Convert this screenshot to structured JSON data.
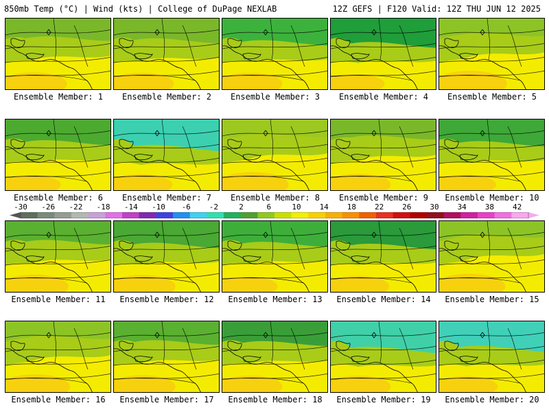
{
  "header": {
    "left": "850mb Temp (°C) | Wind (kts) | College of DuPage NEXLAB",
    "right": "12Z GEFS | F120 Valid: 12Z THU JUN 12 2025"
  },
  "panels": [
    {
      "label": "Ensemble Member: 1"
    },
    {
      "label": "Ensemble Member: 2"
    },
    {
      "label": "Ensemble Member: 3"
    },
    {
      "label": "Ensemble Member: 4"
    },
    {
      "label": "Ensemble Member: 5"
    },
    {
      "label": "Ensemble Member: 6"
    },
    {
      "label": "Ensemble Member: 7"
    },
    {
      "label": "Ensemble Member: 8"
    },
    {
      "label": "Ensemble Member: 9"
    },
    {
      "label": "Ensemble Member: 10"
    },
    {
      "label": "Ensemble Member: 11"
    },
    {
      "label": "Ensemble Member: 12"
    },
    {
      "label": "Ensemble Member: 13"
    },
    {
      "label": "Ensemble Member: 14"
    },
    {
      "label": "Ensemble Member: 15"
    },
    {
      "label": "Ensemble Member: 16"
    },
    {
      "label": "Ensemble Member: 17"
    },
    {
      "label": "Ensemble Member: 18"
    },
    {
      "label": "Ensemble Member: 19"
    },
    {
      "label": "Ensemble Member: 20"
    }
  ],
  "colorbar": {
    "ticks": [
      "-30",
      "-26",
      "-22",
      "-18",
      "-14",
      "-10",
      "-6",
      "-2",
      "2",
      "6",
      "10",
      "14",
      "18",
      "22",
      "26",
      "30",
      "34",
      "38",
      "42"
    ],
    "colors": [
      "#5e6e5e",
      "#7a8a7a",
      "#949c94",
      "#b0b8b0",
      "#c8a0d8",
      "#e070e8",
      "#c040c8",
      "#8028b0",
      "#4040e0",
      "#2090f0",
      "#40d0f0",
      "#30e0b0",
      "#20b060",
      "#50a030",
      "#90c820",
      "#c8e000",
      "#f0f000",
      "#f8d000",
      "#f8b000",
      "#f89000",
      "#f06000",
      "#e83020",
      "#d01010",
      "#b00000",
      "#901020",
      "#b01060",
      "#d020a0",
      "#e840c8",
      "#f070e0",
      "#f8a8f0"
    ]
  },
  "scenarios": [
    {
      "tint": "#7ab82a",
      "cool": 0.35,
      "warm": 0.55
    },
    {
      "tint": "#7ab82a",
      "cool": 0.45,
      "warm": 0.5
    },
    {
      "tint": "#3cb23c",
      "cool": 0.55,
      "warm": 0.5
    },
    {
      "tint": "#1f9e3a",
      "cool": 0.65,
      "warm": 0.3
    },
    {
      "tint": "#8cc425",
      "cool": 0.15,
      "warm": 0.75
    },
    {
      "tint": "#4caa30",
      "cool": 0.5,
      "warm": 0.35
    },
    {
      "tint": "#3cd0b0",
      "cool": 0.75,
      "warm": 0.45
    },
    {
      "tint": "#9cc820",
      "cool": 0.15,
      "warm": 0.7
    },
    {
      "tint": "#7ab82a",
      "cool": 0.25,
      "warm": 0.5
    },
    {
      "tint": "#3ea838",
      "cool": 0.55,
      "warm": 0.4
    },
    {
      "tint": "#5ab030",
      "cool": 0.4,
      "warm": 0.6
    },
    {
      "tint": "#4aa834",
      "cool": 0.55,
      "warm": 0.55
    },
    {
      "tint": "#3eae3a",
      "cool": 0.5,
      "warm": 0.35
    },
    {
      "tint": "#2a9a3a",
      "cool": 0.6,
      "warm": 0.45
    },
    {
      "tint": "#8cc425",
      "cool": 0.1,
      "warm": 0.7
    },
    {
      "tint": "#8cc425",
      "cool": 0.15,
      "warm": 0.65
    },
    {
      "tint": "#5ab030",
      "cool": 0.4,
      "warm": 0.55
    },
    {
      "tint": "#3a9e38",
      "cool": 0.45,
      "warm": 0.5
    },
    {
      "tint": "#40d0a8",
      "cool": 0.75,
      "warm": 0.5
    },
    {
      "tint": "#40d0b8",
      "cool": 0.7,
      "warm": 0.45
    }
  ]
}
